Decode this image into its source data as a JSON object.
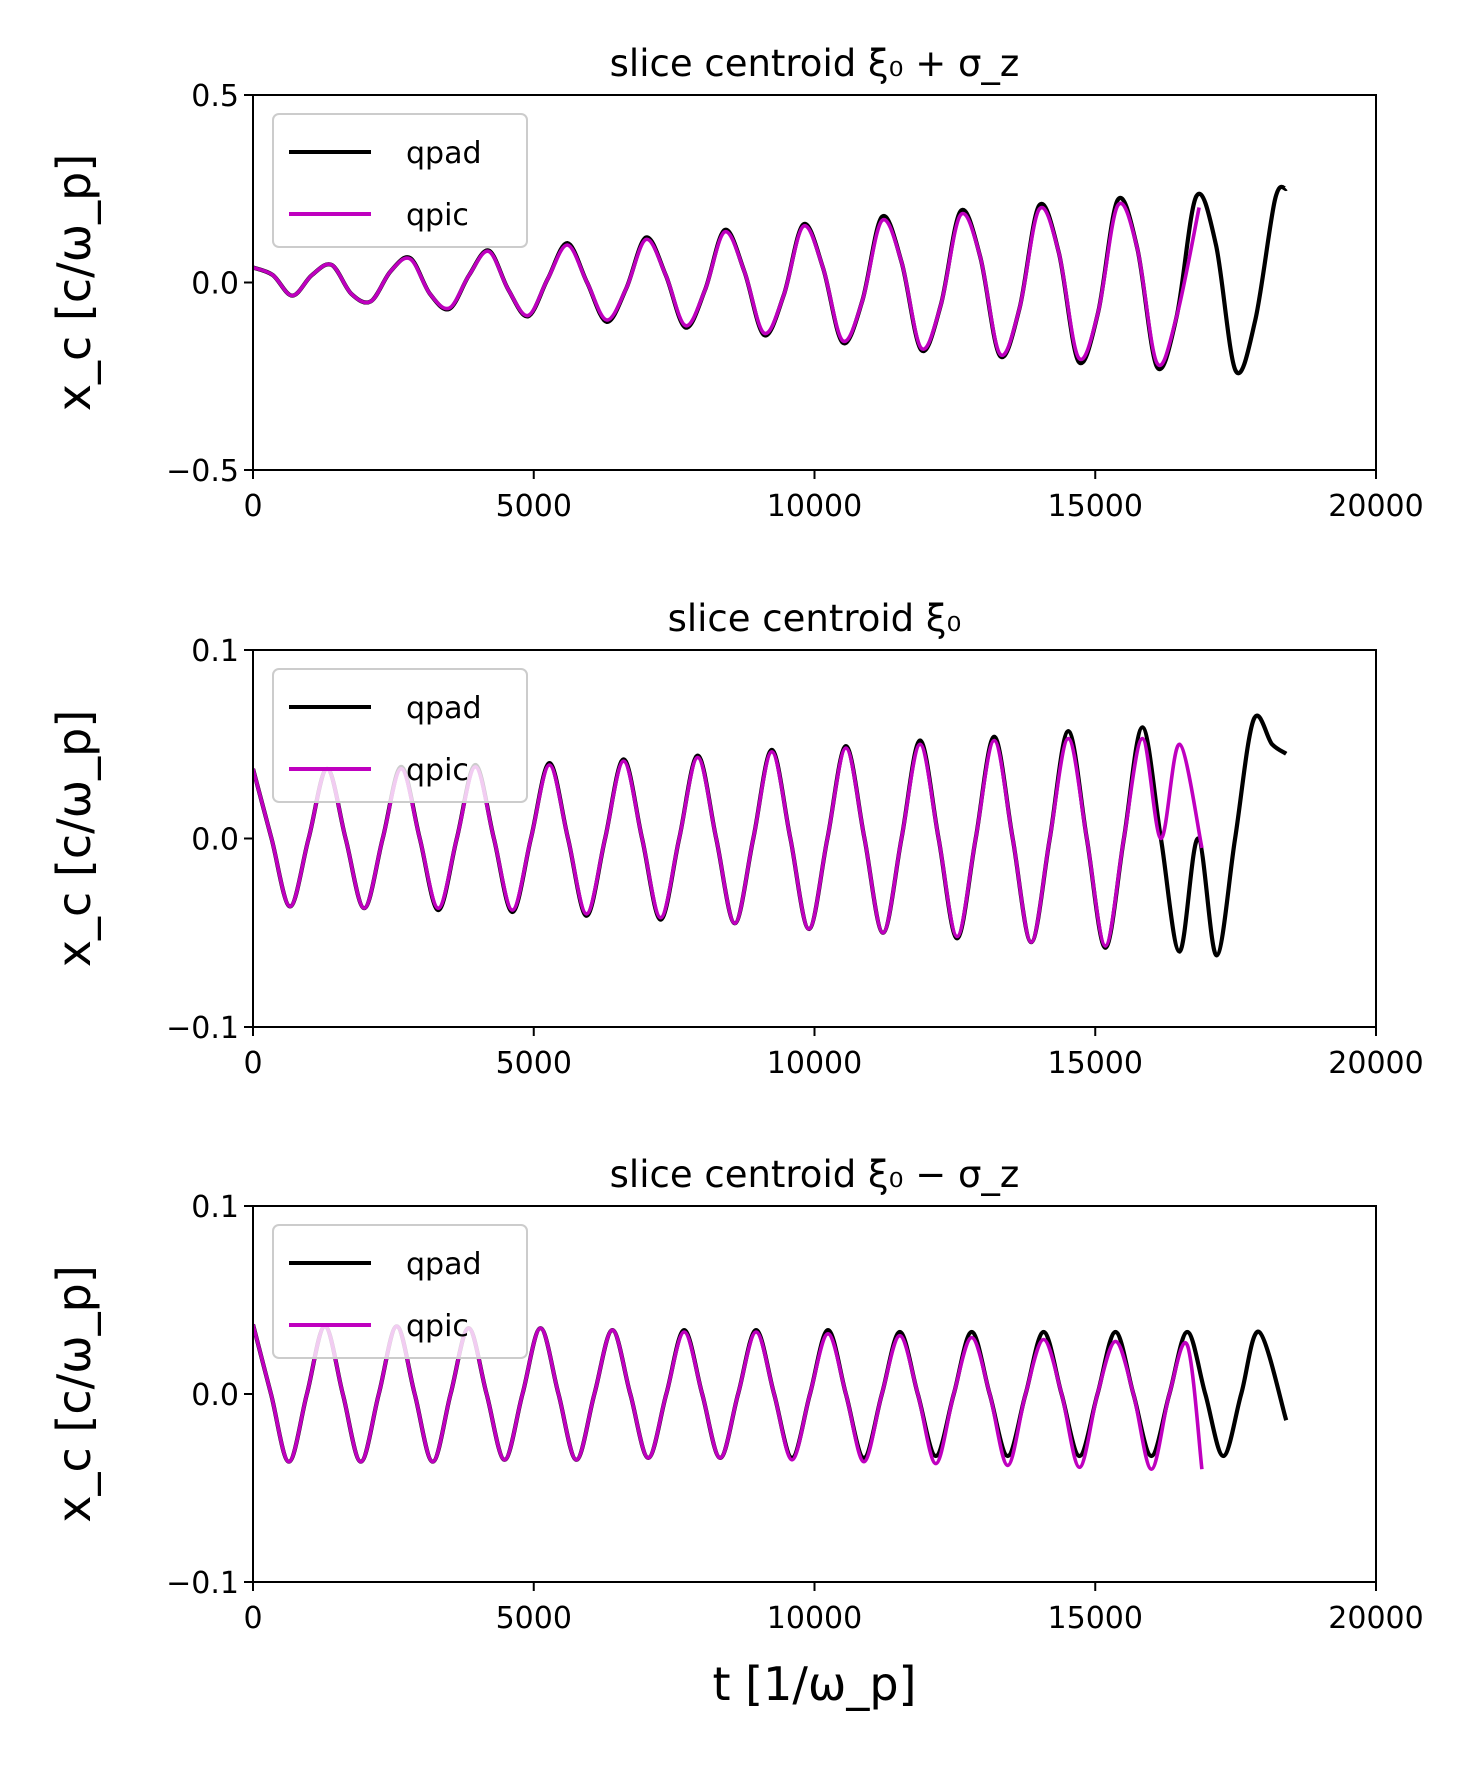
{
  "chart_data": [
    {
      "type": "line",
      "title": "slice centroid ξ₀ + σ_z",
      "ylabel": "x_c [c/ω_p]",
      "xlabel": "",
      "xlim": [
        0,
        20000
      ],
      "ylim": [
        -0.5,
        0.5
      ],
      "xticks": [
        0,
        5000,
        10000,
        15000,
        20000
      ],
      "xtick_labels": [
        "0",
        "5000",
        "10000",
        "15000",
        "20000"
      ],
      "yticks": [
        0.5,
        0.0,
        -0.5
      ],
      "ytick_labels": [
        "0.5",
        "0.0",
        "−0.5"
      ],
      "legend": "upper-left",
      "grid": false,
      "series": [
        {
          "name": "qpad",
          "color": "#000000",
          "x": [
            0,
            350,
            700,
            1050,
            1400,
            1750,
            2100,
            2450,
            2800,
            3150,
            3500,
            3850,
            4200,
            4550,
            4900,
            5250,
            5600,
            5950,
            6300,
            6650,
            7000,
            7350,
            7700,
            8050,
            8400,
            8750,
            9100,
            9450,
            9800,
            10150,
            10500,
            10850,
            11200,
            11550,
            11900,
            12250,
            12600,
            12950,
            13300,
            13650,
            14000,
            14350,
            14700,
            15050,
            15400,
            15750,
            16100,
            16450,
            16800,
            17150,
            17500,
            17850,
            18200,
            18400
          ],
          "y": [
            0.04,
            0.02,
            -0.035,
            0.02,
            0.047,
            -0.03,
            -0.05,
            0.03,
            0.065,
            -0.03,
            -0.07,
            0.02,
            0.085,
            -0.02,
            -0.09,
            0.01,
            0.105,
            0.0,
            -0.105,
            -0.015,
            0.12,
            0.02,
            -0.12,
            -0.02,
            0.14,
            0.03,
            -0.14,
            -0.035,
            0.155,
            0.04,
            -0.16,
            -0.05,
            0.175,
            0.055,
            -0.18,
            -0.06,
            0.19,
            0.07,
            -0.195,
            -0.07,
            0.205,
            0.08,
            -0.21,
            -0.08,
            0.22,
            0.09,
            -0.225,
            -0.09,
            0.23,
            0.1,
            -0.235,
            -0.1,
            0.22,
            0.25
          ]
        },
        {
          "name": "qpic",
          "color": "#bf00bf",
          "x": [
            0,
            350,
            700,
            1050,
            1400,
            1750,
            2100,
            2450,
            2800,
            3150,
            3500,
            3850,
            4200,
            4550,
            4900,
            5250,
            5600,
            5950,
            6300,
            6650,
            7000,
            7350,
            7700,
            8050,
            8400,
            8750,
            9100,
            9450,
            9800,
            10150,
            10500,
            10850,
            11200,
            11550,
            11900,
            12250,
            12600,
            12950,
            13300,
            13650,
            14000,
            14350,
            14700,
            15050,
            15400,
            15750,
            16100,
            16450,
            16850
          ],
          "y": [
            0.04,
            0.02,
            -0.035,
            0.02,
            0.047,
            -0.03,
            -0.05,
            0.03,
            0.063,
            -0.03,
            -0.068,
            0.02,
            0.083,
            -0.02,
            -0.088,
            0.01,
            0.1,
            0.0,
            -0.1,
            -0.015,
            0.115,
            0.02,
            -0.115,
            -0.02,
            0.135,
            0.03,
            -0.135,
            -0.035,
            0.15,
            0.04,
            -0.155,
            -0.05,
            0.165,
            0.055,
            -0.175,
            -0.06,
            0.18,
            0.07,
            -0.19,
            -0.07,
            0.195,
            0.08,
            -0.2,
            -0.08,
            0.205,
            0.09,
            -0.215,
            -0.09,
            0.2
          ]
        }
      ]
    },
    {
      "type": "line",
      "title": "slice centroid ξ₀",
      "ylabel": "x_c [c/ω_p]",
      "xlabel": "",
      "xlim": [
        0,
        20000
      ],
      "ylim": [
        -0.1,
        0.1
      ],
      "xticks": [
        0,
        5000,
        10000,
        15000,
        20000
      ],
      "xtick_labels": [
        "0",
        "5000",
        "10000",
        "15000",
        "20000"
      ],
      "yticks": [
        0.1,
        0.0,
        -0.1
      ],
      "ytick_labels": [
        "0.1",
        "0.0",
        "−0.1"
      ],
      "legend": "upper-left",
      "grid": false,
      "series": [
        {
          "name": "qpad",
          "color": "#000000",
          "x": [
            0,
            330,
            660,
            990,
            1320,
            1650,
            1980,
            2310,
            2640,
            2970,
            3300,
            3630,
            3960,
            4290,
            4620,
            4950,
            5280,
            5610,
            5940,
            6270,
            6600,
            6930,
            7260,
            7590,
            7920,
            8250,
            8580,
            8910,
            9240,
            9570,
            9900,
            10230,
            10560,
            10890,
            11220,
            11550,
            11880,
            12210,
            12540,
            12870,
            13200,
            13530,
            13860,
            14190,
            14520,
            14850,
            15180,
            15510,
            15840,
            16170,
            16500,
            16830,
            17160,
            17490,
            17820,
            18150,
            18400
          ],
          "y": [
            0.037,
            0.0,
            -0.036,
            0.0,
            0.037,
            0.0,
            -0.037,
            0.0,
            0.038,
            0.0,
            -0.038,
            0.0,
            0.039,
            0.0,
            -0.039,
            0.0,
            0.04,
            0.0,
            -0.041,
            0.0,
            0.042,
            0.0,
            -0.043,
            0.0,
            0.044,
            0.0,
            -0.045,
            0.0,
            0.047,
            0.0,
            -0.048,
            0.0,
            0.049,
            0.0,
            -0.05,
            0.0,
            0.052,
            0.0,
            -0.053,
            0.0,
            0.054,
            0.0,
            -0.055,
            0.0,
            0.057,
            0.0,
            -0.058,
            0.0,
            0.059,
            0.0,
            -0.06,
            0.0,
            -0.062,
            0.0,
            0.063,
            0.05,
            0.045
          ]
        },
        {
          "name": "qpic",
          "color": "#bf00bf",
          "x": [
            0,
            330,
            660,
            990,
            1320,
            1650,
            1980,
            2310,
            2640,
            2970,
            3300,
            3630,
            3960,
            4290,
            4620,
            4950,
            5280,
            5610,
            5940,
            6270,
            6600,
            6930,
            7260,
            7590,
            7920,
            8250,
            8580,
            8910,
            9240,
            9570,
            9900,
            10230,
            10560,
            10890,
            11220,
            11550,
            11880,
            12210,
            12540,
            12870,
            13200,
            13530,
            13860,
            14190,
            14520,
            14850,
            15180,
            15510,
            15840,
            16170,
            16500,
            16900
          ],
          "y": [
            0.037,
            0.0,
            -0.036,
            0.0,
            0.037,
            0.0,
            -0.037,
            0.0,
            0.037,
            0.0,
            -0.037,
            0.0,
            0.038,
            0.0,
            -0.038,
            0.0,
            0.039,
            0.0,
            -0.04,
            0.0,
            0.041,
            0.0,
            -0.042,
            0.0,
            0.043,
            0.0,
            -0.045,
            0.0,
            0.046,
            0.0,
            -0.048,
            0.0,
            0.048,
            0.0,
            -0.05,
            0.0,
            0.05,
            0.0,
            -0.052,
            0.0,
            0.052,
            0.0,
            -0.055,
            0.0,
            0.053,
            0.0,
            -0.057,
            0.0,
            0.053,
            0.0,
            0.05,
            -0.005
          ]
        }
      ]
    },
    {
      "type": "line",
      "title": "slice centroid ξ₀ − σ_z",
      "ylabel": "x_c [c/ω_p]",
      "xlabel": "t [1/ω_p]",
      "xlim": [
        0,
        20000
      ],
      "ylim": [
        -0.1,
        0.1
      ],
      "xticks": [
        0,
        5000,
        10000,
        15000,
        20000
      ],
      "xtick_labels": [
        "0",
        "5000",
        "10000",
        "15000",
        "20000"
      ],
      "yticks": [
        0.1,
        0.0,
        -0.1
      ],
      "ytick_labels": [
        "0.1",
        "0.0",
        "−0.1"
      ],
      "legend": "upper-left",
      "grid": false,
      "series": [
        {
          "name": "qpad",
          "color": "#000000",
          "x": [
            0,
            320,
            640,
            960,
            1280,
            1600,
            1920,
            2240,
            2560,
            2880,
            3200,
            3520,
            3840,
            4160,
            4480,
            4800,
            5120,
            5440,
            5760,
            6080,
            6400,
            6720,
            7040,
            7360,
            7680,
            8000,
            8320,
            8640,
            8960,
            9280,
            9600,
            9920,
            10240,
            10560,
            10880,
            11200,
            11520,
            11840,
            12160,
            12480,
            12800,
            13120,
            13440,
            13760,
            14080,
            14400,
            14720,
            15040,
            15360,
            15680,
            16000,
            16320,
            16640,
            16960,
            17280,
            17600,
            17920,
            18400
          ],
          "y": [
            0.037,
            0.0,
            -0.036,
            0.0,
            0.036,
            0.0,
            -0.036,
            0.0,
            0.036,
            0.0,
            -0.036,
            0.0,
            0.035,
            0.0,
            -0.035,
            0.0,
            0.035,
            0.0,
            -0.035,
            0.0,
            0.034,
            0.0,
            -0.034,
            0.0,
            0.034,
            0.0,
            -0.034,
            0.0,
            0.034,
            0.0,
            -0.034,
            0.0,
            0.034,
            0.0,
            -0.034,
            0.0,
            0.033,
            0.0,
            -0.033,
            0.0,
            0.033,
            0.0,
            -0.033,
            0.0,
            0.033,
            0.0,
            -0.033,
            0.0,
            0.033,
            0.0,
            -0.033,
            0.0,
            0.033,
            0.0,
            -0.033,
            0.0,
            0.033,
            -0.014
          ]
        },
        {
          "name": "qpic",
          "color": "#bf00bf",
          "x": [
            0,
            320,
            640,
            960,
            1280,
            1600,
            1920,
            2240,
            2560,
            2880,
            3200,
            3520,
            3840,
            4160,
            4480,
            4800,
            5120,
            5440,
            5760,
            6080,
            6400,
            6720,
            7040,
            7360,
            7680,
            8000,
            8320,
            8640,
            8960,
            9280,
            9600,
            9920,
            10240,
            10560,
            10880,
            11200,
            11520,
            11840,
            12160,
            12480,
            12800,
            13120,
            13440,
            13760,
            14080,
            14400,
            14720,
            15040,
            15360,
            15680,
            16000,
            16320,
            16640,
            16900
          ],
          "y": [
            0.037,
            0.0,
            -0.036,
            0.0,
            0.036,
            0.0,
            -0.036,
            0.0,
            0.036,
            0.0,
            -0.036,
            0.0,
            0.035,
            0.0,
            -0.035,
            0.0,
            0.035,
            0.0,
            -0.035,
            0.0,
            0.034,
            0.0,
            -0.034,
            0.0,
            0.033,
            0.0,
            -0.034,
            0.0,
            0.033,
            0.0,
            -0.035,
            0.0,
            0.032,
            0.0,
            -0.036,
            0.0,
            0.031,
            0.0,
            -0.037,
            0.0,
            0.03,
            0.0,
            -0.038,
            0.0,
            0.029,
            0.0,
            -0.039,
            0.0,
            0.028,
            0.0,
            -0.04,
            0.0,
            0.026,
            -0.04
          ]
        }
      ]
    }
  ],
  "legend_labels": [
    "qpad",
    "qpic"
  ]
}
